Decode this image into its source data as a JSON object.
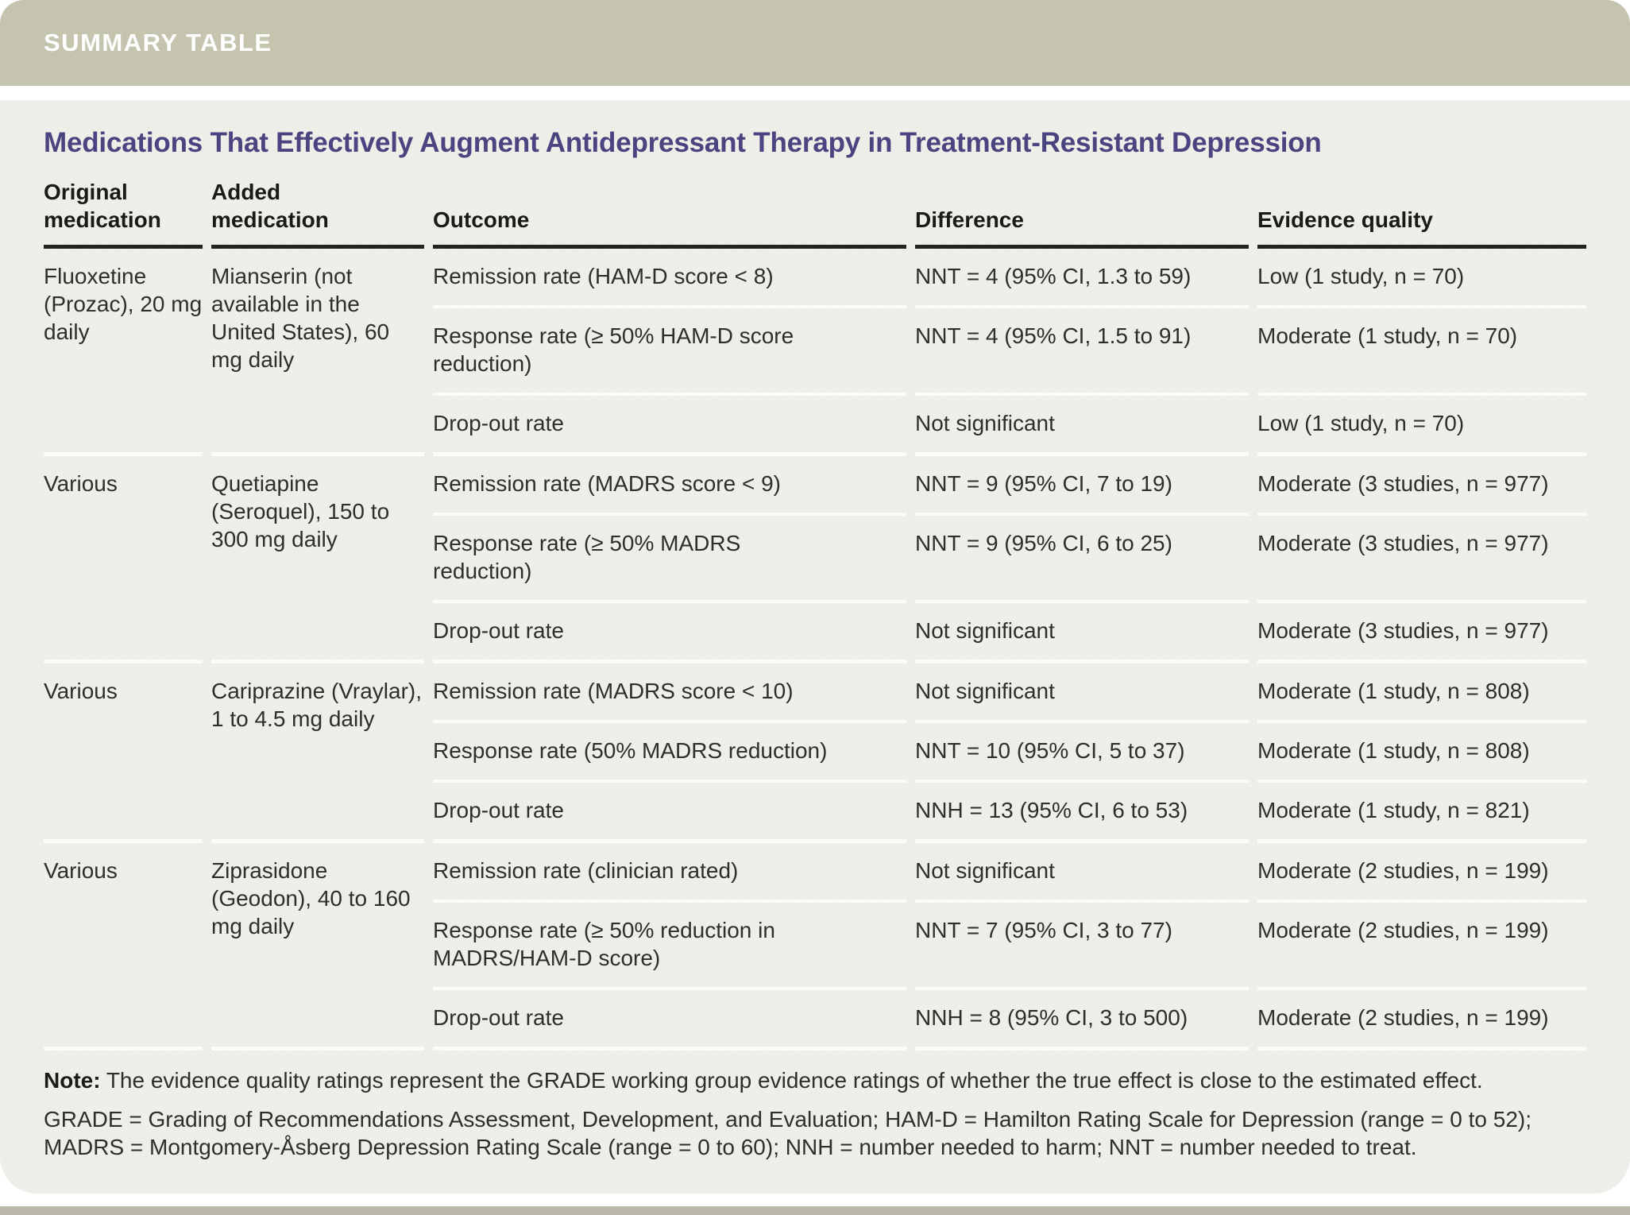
{
  "banner": {
    "label": "SUMMARY TABLE"
  },
  "title": "Medications That Effectively Augment Antidepressant Therapy in Treatment-Resistant Depression",
  "table": {
    "columns": [
      "Original medication",
      "Added medication",
      "Outcome",
      "Difference",
      "Evidence quality"
    ],
    "groups": [
      {
        "original": "Fluoxetine (Prozac), 20 mg daily",
        "added": "Mianserin (not available in the United States), 60 mg daily",
        "rows": [
          {
            "outcome": "Remission rate (HAM-D score < 8)",
            "difference": "NNT = 4 (95% CI, 1.3 to 59)",
            "evidence": "Low (1 study, n = 70)"
          },
          {
            "outcome": "Response rate (≥ 50% HAM-D score reduction)",
            "difference": "NNT = 4 (95% CI, 1.5 to 91)",
            "evidence": "Moderate (1 study, n = 70)"
          },
          {
            "outcome": "Drop-out rate",
            "difference": "Not significant",
            "evidence": "Low (1 study, n = 70)"
          }
        ]
      },
      {
        "original": "Various",
        "added": "Quetiapine (Seroquel), 150 to 300 mg daily",
        "rows": [
          {
            "outcome": "Remission rate (MADRS score < 9)",
            "difference": "NNT = 9 (95% CI, 7 to 19)",
            "evidence": "Moderate (3 studies, n = 977)"
          },
          {
            "outcome": "Response rate (≥ 50% MADRS reduction)",
            "difference": "NNT = 9 (95% CI, 6 to 25)",
            "evidence": "Moderate (3 studies, n = 977)"
          },
          {
            "outcome": "Drop-out rate",
            "difference": "Not significant",
            "evidence": "Moderate (3 studies, n = 977)"
          }
        ]
      },
      {
        "original": "Various",
        "added": "Cariprazine (Vraylar), 1 to 4.5 mg daily",
        "rows": [
          {
            "outcome": "Remission rate (MADRS score < 10)",
            "difference": "Not significant",
            "evidence": "Moderate (1 study, n = 808)"
          },
          {
            "outcome": "Response rate (50% MADRS reduction)",
            "difference": "NNT = 10 (95% CI, 5 to 37)",
            "evidence": "Moderate (1 study, n = 808)"
          },
          {
            "outcome": "Drop-out rate",
            "difference": "NNH = 13 (95% CI, 6 to 53)",
            "evidence": "Moderate (1 study, n = 821)"
          }
        ]
      },
      {
        "original": "Various",
        "added": "Ziprasidone (Geodon), 40 to 160 mg daily",
        "rows": [
          {
            "outcome": "Remission rate (clinician rated)",
            "difference": "Not significant",
            "evidence": "Moderate (2 studies, n = 199)"
          },
          {
            "outcome": "Response rate (≥ 50% reduction in MADRS/HAM-D score)",
            "difference": "NNT = 7 (95% CI, 3 to 77)",
            "evidence": "Moderate (2 studies, n = 199)"
          },
          {
            "outcome": "Drop-out rate",
            "difference": "NNH = 8 (95% CI, 3 to 500)",
            "evidence": "Moderate (2 studies, n = 199)"
          }
        ]
      }
    ]
  },
  "footnotes": {
    "note_label": "Note:",
    "note_text": " The evidence quality ratings represent the GRADE working group evidence ratings of whether the true effect is close to the estimated effect.",
    "abbreviations": "GRADE = Grading of Recommendations Assessment, Development, and Evaluation; HAM-D = Hamilton Rating Scale for Depression (range = 0 to 52); MADRS = Montgomery-Åsberg Depression Rating Scale (range = 0 to 60); NNH = number needed to harm; NNT = number needed to treat."
  },
  "colors": {
    "banner_bg": "#c5c4af",
    "panel_bg": "#f0efe9",
    "title_color": "#4a4580",
    "header_rule": "#242320",
    "row_sep": "#fcfbf6",
    "text_color": "#2f2e2b",
    "strip_color": "#b9b8a8"
  }
}
